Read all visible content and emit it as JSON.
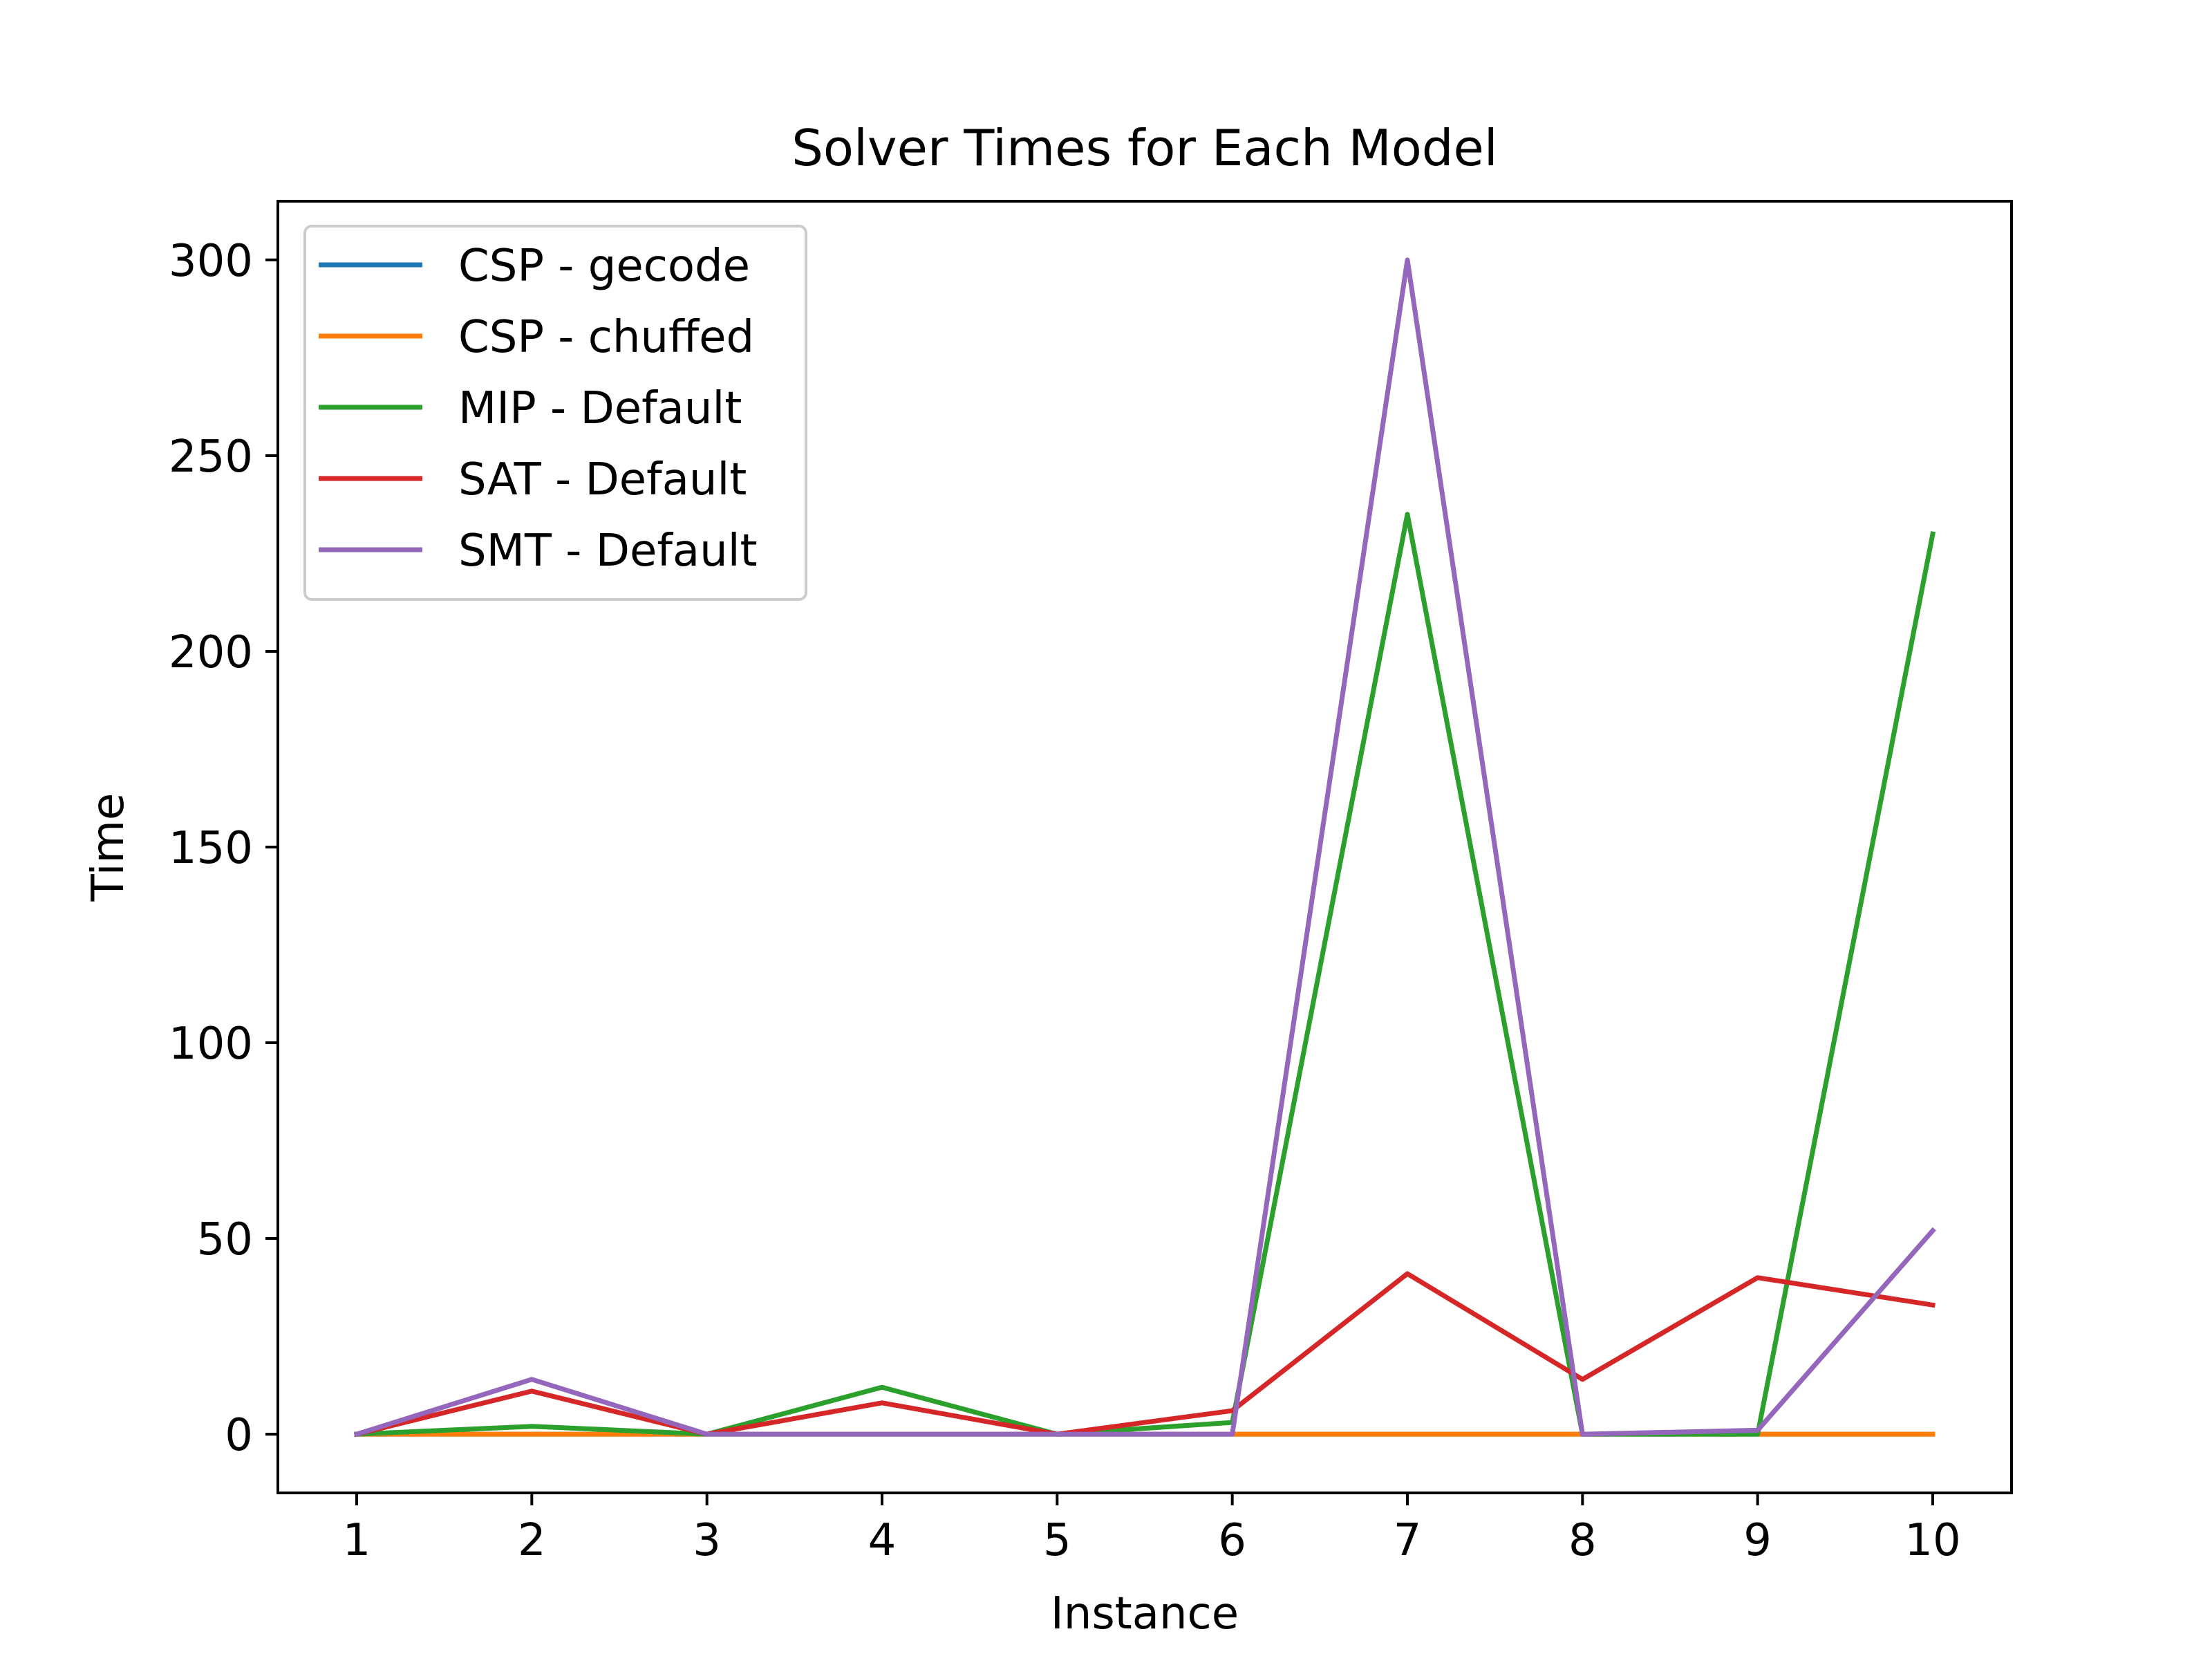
{
  "chart_data": {
    "type": "line",
    "title": "Solver Times for Each Model",
    "xlabel": "Instance",
    "ylabel": "Time",
    "x": [
      1,
      2,
      3,
      4,
      5,
      6,
      7,
      8,
      9,
      10
    ],
    "x_ticks": [
      "1",
      "2",
      "3",
      "4",
      "5",
      "6",
      "7",
      "8",
      "9",
      "10"
    ],
    "y_ticks": [
      "0",
      "50",
      "100",
      "150",
      "200",
      "250",
      "300"
    ],
    "xlim": [
      0.55,
      10.45
    ],
    "ylim": [
      -15,
      315
    ],
    "grid": false,
    "legend_position": "upper-left",
    "series": [
      {
        "name": "CSP - gecode",
        "color": "#1f77b4",
        "values": [
          0,
          0,
          0,
          0,
          0,
          0,
          0,
          0,
          0,
          0
        ]
      },
      {
        "name": "CSP - chuffed",
        "color": "#ff7f0e",
        "values": [
          0,
          0,
          0,
          0,
          0,
          0,
          0,
          0,
          0,
          0
        ]
      },
      {
        "name": "MIP - Default",
        "color": "#2ca02c",
        "values": [
          0,
          2,
          0,
          12,
          0,
          3,
          235,
          0,
          0,
          230
        ]
      },
      {
        "name": "SAT - Default",
        "color": "#d62728",
        "values": [
          0,
          11,
          0,
          8,
          0,
          6,
          41,
          14,
          40,
          33
        ]
      },
      {
        "name": "SMT - Default",
        "color": "#9467bd",
        "values": [
          0,
          14,
          0,
          0,
          0,
          0,
          300,
          0,
          1,
          52
        ]
      }
    ]
  }
}
